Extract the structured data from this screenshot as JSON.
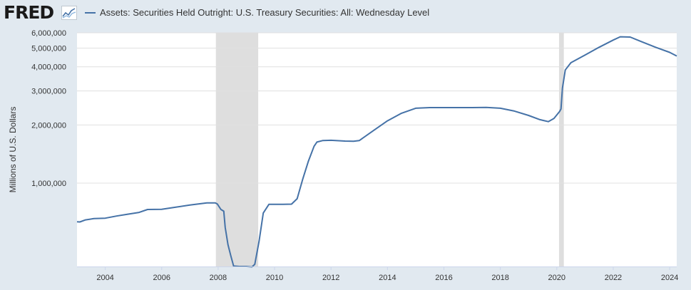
{
  "brand": {
    "logo_text": "FRED",
    "logo_icon": "fred-chart-icon"
  },
  "colors": {
    "series": "#4572a7",
    "recession": "#dedede",
    "plot_bg": "#ffffff",
    "page_bg": "#e1e9f0",
    "grid": "#e0e0e0"
  },
  "chart_data": {
    "type": "line",
    "legend": {
      "placement": "top-left"
    },
    "grid": true,
    "ylabel": "Millions of U.S. Dollars",
    "yscale": "log",
    "ylim": [
      370000,
      6000000
    ],
    "xlim": [
      2003.0,
      2024.25
    ],
    "y_ticks": [
      {
        "value": 1000000,
        "label": "1,000,000"
      },
      {
        "value": 2000000,
        "label": "2,000,000"
      },
      {
        "value": 3000000,
        "label": "3,000,000"
      },
      {
        "value": 4000000,
        "label": "4,000,000"
      },
      {
        "value": 5000000,
        "label": "5,000,000"
      },
      {
        "value": 6000000,
        "label": "6,000,000"
      }
    ],
    "x_ticks": [
      {
        "value": 2004,
        "label": "2004"
      },
      {
        "value": 2006,
        "label": "2006"
      },
      {
        "value": 2008,
        "label": "2008"
      },
      {
        "value": 2010,
        "label": "2010"
      },
      {
        "value": 2012,
        "label": "2012"
      },
      {
        "value": 2014,
        "label": "2014"
      },
      {
        "value": 2016,
        "label": "2016"
      },
      {
        "value": 2018,
        "label": "2018"
      },
      {
        "value": 2020,
        "label": "2020"
      },
      {
        "value": 2022,
        "label": "2022"
      },
      {
        "value": 2024,
        "label": "2024"
      }
    ],
    "recessions": [
      {
        "start": 2007.92,
        "end": 2009.42
      },
      {
        "start": 2020.08,
        "end": 2020.25
      }
    ],
    "series": [
      {
        "name": "Assets: Securities Held Outright: U.S. Treasury Securities: All: Wednesday Level",
        "points": [
          [
            2003.0,
            630000
          ],
          [
            2003.1,
            629000
          ],
          [
            2003.3,
            645000
          ],
          [
            2003.6,
            655000
          ],
          [
            2004.0,
            658000
          ],
          [
            2004.4,
            675000
          ],
          [
            2004.8,
            690000
          ],
          [
            2005.2,
            705000
          ],
          [
            2005.5,
            730000
          ],
          [
            2006.0,
            732000
          ],
          [
            2006.5,
            750000
          ],
          [
            2007.0,
            770000
          ],
          [
            2007.3,
            780000
          ],
          [
            2007.6,
            790000
          ],
          [
            2007.9,
            790000
          ],
          [
            2007.97,
            780000
          ],
          [
            2008.1,
            730000
          ],
          [
            2008.2,
            715000
          ],
          [
            2008.25,
            590000
          ],
          [
            2008.35,
            480000
          ],
          [
            2008.45,
            420000
          ],
          [
            2008.55,
            372000
          ],
          [
            2008.75,
            370000
          ],
          [
            2009.0,
            370000
          ],
          [
            2009.2,
            368000
          ],
          [
            2009.3,
            380000
          ],
          [
            2009.45,
            500000
          ],
          [
            2009.6,
            700000
          ],
          [
            2009.8,
            776000
          ],
          [
            2010.0,
            777000
          ],
          [
            2010.3,
            777000
          ],
          [
            2010.6,
            778000
          ],
          [
            2010.8,
            830000
          ],
          [
            2011.0,
            1050000
          ],
          [
            2011.2,
            1300000
          ],
          [
            2011.4,
            1550000
          ],
          [
            2011.5,
            1630000
          ],
          [
            2011.7,
            1660000
          ],
          [
            2012.0,
            1665000
          ],
          [
            2012.5,
            1650000
          ],
          [
            2012.8,
            1645000
          ],
          [
            2013.0,
            1660000
          ],
          [
            2013.5,
            1870000
          ],
          [
            2014.0,
            2100000
          ],
          [
            2014.5,
            2300000
          ],
          [
            2015.0,
            2440000
          ],
          [
            2015.5,
            2460000
          ],
          [
            2016.0,
            2460000
          ],
          [
            2016.5,
            2460000
          ],
          [
            2017.0,
            2460000
          ],
          [
            2017.5,
            2465000
          ],
          [
            2018.0,
            2440000
          ],
          [
            2018.5,
            2360000
          ],
          [
            2019.0,
            2240000
          ],
          [
            2019.4,
            2130000
          ],
          [
            2019.7,
            2080000
          ],
          [
            2019.9,
            2160000
          ],
          [
            2020.1,
            2350000
          ],
          [
            2020.15,
            2420000
          ],
          [
            2020.2,
            3100000
          ],
          [
            2020.3,
            3850000
          ],
          [
            2020.5,
            4200000
          ],
          [
            2021.0,
            4600000
          ],
          [
            2021.5,
            5050000
          ],
          [
            2022.0,
            5500000
          ],
          [
            2022.25,
            5720000
          ],
          [
            2022.6,
            5700000
          ],
          [
            2023.0,
            5400000
          ],
          [
            2023.5,
            5050000
          ],
          [
            2024.0,
            4750000
          ],
          [
            2024.25,
            4550000
          ]
        ]
      }
    ]
  }
}
